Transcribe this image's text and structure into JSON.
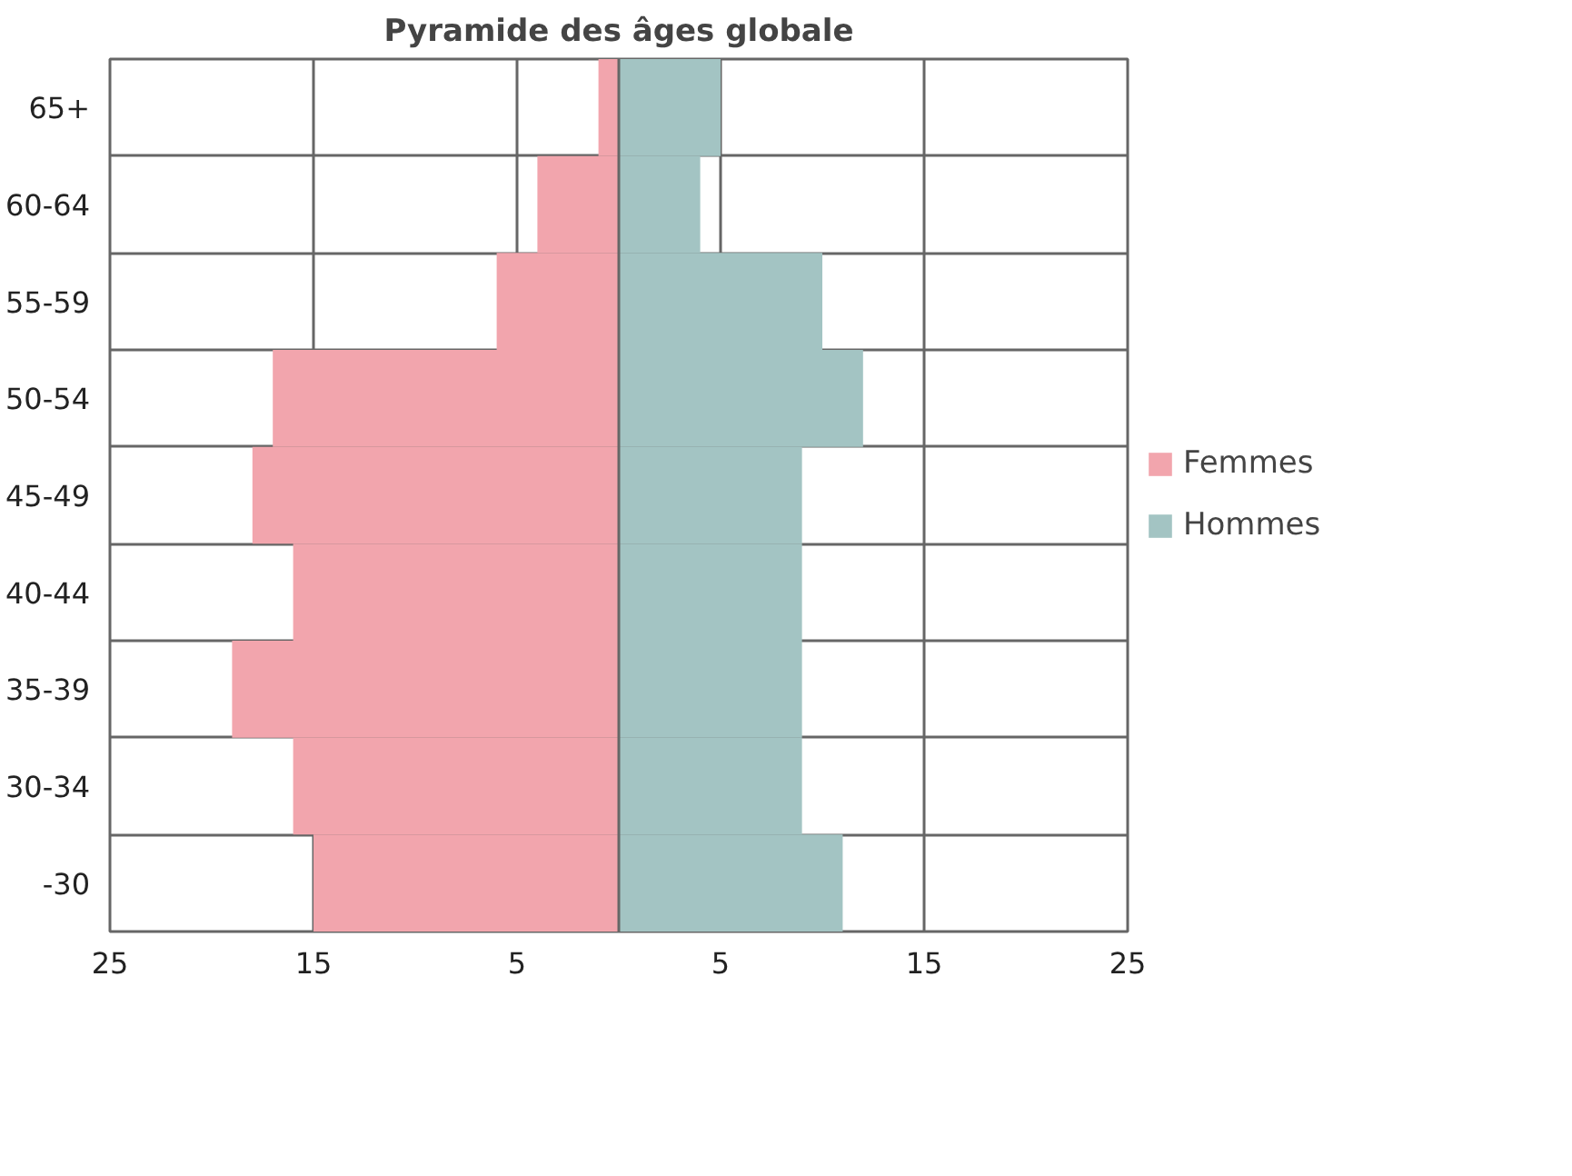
{
  "chart_data": {
    "type": "bar",
    "orientation": "horizontal",
    "title": "Pyramide des âges globale",
    "categories": [
      "65+",
      "60-64",
      "55-59",
      "50-54",
      "45-49",
      "40-44",
      "35-39",
      "30-34",
      "-30"
    ],
    "series": [
      {
        "name": "Femmes",
        "color": "#f2a5ad",
        "values": [
          -1,
          -4,
          -6,
          -17,
          -18,
          -16,
          -19,
          -16,
          -15
        ]
      },
      {
        "name": "Hommes",
        "color": "#a3c4c3",
        "values": [
          5,
          4,
          10,
          12,
          9,
          9,
          9,
          9,
          11
        ]
      }
    ],
    "xlim": [
      -25,
      25
    ],
    "xticks": [
      {
        "value": -25,
        "label": "25"
      },
      {
        "value": -15,
        "label": "15"
      },
      {
        "value": -5,
        "label": "5"
      },
      5,
      15,
      25
    ],
    "stacked": true,
    "grid": true,
    "legend": "right"
  }
}
